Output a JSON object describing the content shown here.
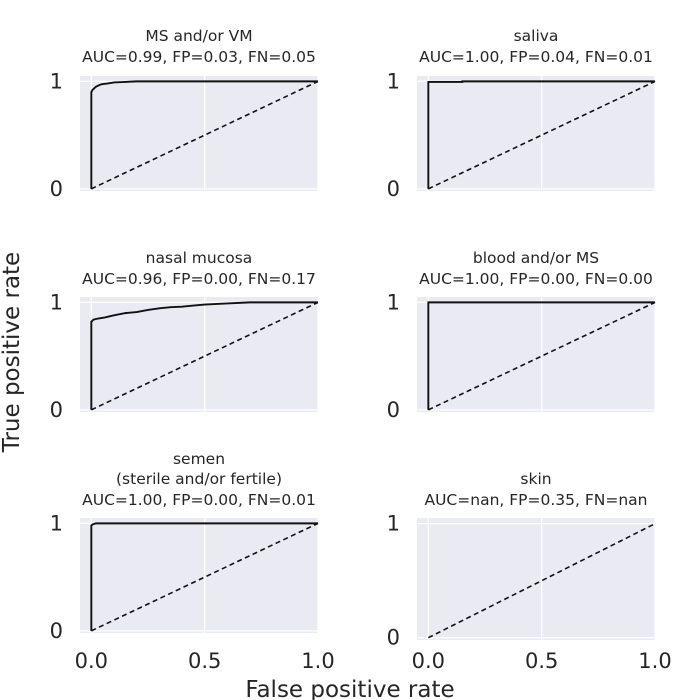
{
  "figure": {
    "xlabel": "False positive rate",
    "ylabel": "True positive rate"
  },
  "colors": {
    "panel_background": "#eaeaf2",
    "grid": "#ffffff",
    "roc_curve": "#111111",
    "diagonal": "#111111",
    "text": "#262626"
  },
  "chart_data": [
    {
      "type": "line",
      "title_lines": [
        "MS and/or VM",
        "AUC=0.99, FP=0.03, FN=0.05"
      ],
      "xlim": [
        0,
        1
      ],
      "ylim": [
        0,
        1
      ],
      "xticks": [
        "0.0",
        "0.5",
        "1.0"
      ],
      "yticks": [
        "0",
        "1"
      ],
      "show_xtick_labels": false,
      "grid": true,
      "series": [
        {
          "x": [
            0,
            0,
            0.005,
            0.01,
            0.015,
            0.02,
            0.03,
            0.04,
            0.05,
            0.07,
            0.1,
            0.15,
            0.2,
            1.0
          ],
          "y": [
            0,
            0.9,
            0.92,
            0.93,
            0.94,
            0.95,
            0.96,
            0.97,
            0.975,
            0.98,
            0.99,
            0.995,
            1.0,
            1.0
          ]
        },
        {
          "x": [
            0,
            1
          ],
          "y": [
            0,
            1
          ],
          "dashed": true
        }
      ]
    },
    {
      "type": "line",
      "title_lines": [
        "saliva",
        "AUC=1.00, FP=0.04, FN=0.01"
      ],
      "xlim": [
        0,
        1
      ],
      "ylim": [
        0,
        1
      ],
      "xticks": [
        "0.0",
        "0.5",
        "1.0"
      ],
      "yticks": [
        "0",
        "1"
      ],
      "show_xtick_labels": false,
      "grid": true,
      "series": [
        {
          "x": [
            0,
            0,
            0.15,
            0.15,
            1.0
          ],
          "y": [
            0,
            0.995,
            0.995,
            1.0,
            1.0
          ]
        },
        {
          "x": [
            0,
            1
          ],
          "y": [
            0,
            1
          ],
          "dashed": true
        }
      ]
    },
    {
      "type": "line",
      "title_lines": [
        "nasal mucosa",
        "AUC=0.96, FP=0.00, FN=0.17"
      ],
      "xlim": [
        0,
        1
      ],
      "ylim": [
        0,
        1
      ],
      "xticks": [
        "0.0",
        "0.5",
        "1.0"
      ],
      "yticks": [
        "0",
        "1"
      ],
      "show_xtick_labels": false,
      "grid": true,
      "series": [
        {
          "x": [
            0,
            0,
            0.01,
            0.03,
            0.06,
            0.1,
            0.15,
            0.2,
            0.25,
            0.3,
            0.35,
            0.4,
            0.45,
            0.5,
            0.6,
            0.7,
            1.0
          ],
          "y": [
            0,
            0.82,
            0.84,
            0.85,
            0.86,
            0.88,
            0.9,
            0.91,
            0.93,
            0.945,
            0.955,
            0.96,
            0.97,
            0.98,
            0.99,
            1.0,
            1.0
          ]
        },
        {
          "x": [
            0,
            1
          ],
          "y": [
            0,
            1
          ],
          "dashed": true
        }
      ]
    },
    {
      "type": "line",
      "title_lines": [
        "blood and/or MS",
        "AUC=1.00, FP=0.00, FN=0.00"
      ],
      "xlim": [
        0,
        1
      ],
      "ylim": [
        0,
        1
      ],
      "xticks": [
        "0.0",
        "0.5",
        "1.0"
      ],
      "yticks": [
        "0",
        "1"
      ],
      "show_xtick_labels": false,
      "grid": true,
      "series": [
        {
          "x": [
            0,
            0,
            1.0
          ],
          "y": [
            0,
            1.0,
            1.0
          ]
        },
        {
          "x": [
            0,
            1
          ],
          "y": [
            0,
            1
          ],
          "dashed": true
        }
      ]
    },
    {
      "type": "line",
      "title_lines": [
        "semen",
        "(sterile and/or fertile)",
        "AUC=1.00, FP=0.00, FN=0.01"
      ],
      "xlim": [
        0,
        1
      ],
      "ylim": [
        0,
        1
      ],
      "xticks": [
        "0.0",
        "0.5",
        "1.0"
      ],
      "yticks": [
        "0",
        "1"
      ],
      "show_xtick_labels": true,
      "grid": true,
      "series": [
        {
          "x": [
            0,
            0,
            0.005,
            0.02,
            1.0
          ],
          "y": [
            0,
            0.98,
            0.99,
            1.0,
            1.0
          ]
        },
        {
          "x": [
            0,
            1
          ],
          "y": [
            0,
            1
          ],
          "dashed": true
        }
      ]
    },
    {
      "type": "line",
      "title_lines": [
        "skin",
        "AUC=nan, FP=0.35, FN=nan"
      ],
      "xlim": [
        0,
        1
      ],
      "ylim": [
        0,
        1
      ],
      "xticks": [
        "0.0",
        "0.5",
        "1.0"
      ],
      "yticks": [
        "0",
        "1"
      ],
      "show_xtick_labels": true,
      "grid": true,
      "series": [
        {
          "x": [
            0,
            1
          ],
          "y": [
            0,
            1
          ],
          "dashed": true
        }
      ]
    }
  ]
}
